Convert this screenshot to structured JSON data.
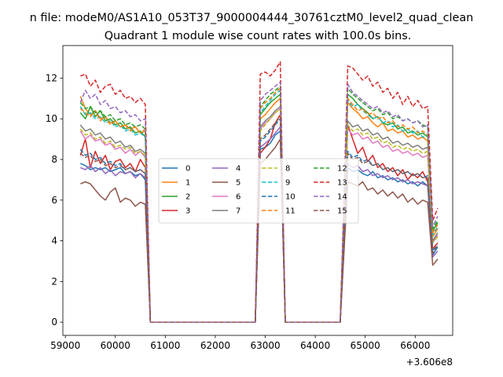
{
  "suptitle": "n file: modeM0/AS1A10_053T37_9000004444_30761cztM0_level2_quad_clean",
  "title": "Quadrant 1 module wise count rates with 100.0s bins.",
  "chart_data": {
    "type": "line",
    "title": "Quadrant 1 module wise count rates with 100.0s bins.",
    "xlabel": "",
    "ylabel": "",
    "x_offset_label": "+3.606e8",
    "xlim": [
      58950,
      66750
    ],
    "ylim": [
      -0.65,
      13.6
    ],
    "xticks": [
      59000,
      60000,
      61000,
      62000,
      63000,
      64000,
      65000,
      66000
    ],
    "yticks": [
      0,
      2,
      4,
      6,
      8,
      10,
      12
    ],
    "legend_location": "center",
    "legend_columns": 4,
    "grid": false,
    "segments": [
      {
        "x_start": 59300,
        "x_end": 60600
      },
      {
        "x_start": 62900,
        "x_end": 63300
      },
      {
        "x_start": 64650,
        "x_end": 66250
      }
    ],
    "series": [
      {
        "name": "0",
        "color": "#1f77b4",
        "style": "solid",
        "seg_values": [
          [
            7.8,
            7.7,
            7.5,
            7.6,
            7.5,
            7.6,
            7.4,
            7.5,
            7.6,
            7.3,
            7.4,
            7.2,
            7.3,
            7.0
          ],
          [
            8.5,
            8.6,
            8.8,
            9.2,
            9.4
          ],
          [
            7.6,
            7.4,
            7.5,
            7.3,
            7.2,
            7.4,
            7.1,
            7.2,
            7.0,
            7.1,
            6.9,
            7.0,
            6.8,
            6.9,
            6.7,
            6.9,
            6.7
          ]
        ],
        "tail": [
          3.3,
          3.7
        ]
      },
      {
        "name": "1",
        "color": "#ff7f0e",
        "style": "solid",
        "seg_values": [
          [
            11.1,
            10.5,
            10.2,
            10.4,
            10.0,
            10.1,
            9.8,
            9.9,
            9.6,
            9.7,
            9.5,
            9.6,
            9.3,
            9.4
          ],
          [
            10.0,
            10.2,
            10.5,
            10.8,
            11.0
          ],
          [
            10.8,
            10.5,
            10.3,
            10.0,
            10.1,
            9.8,
            9.6,
            9.8,
            9.4,
            9.5,
            9.3,
            9.4,
            9.1,
            9.2,
            9.0,
            9.1,
            8.9
          ]
        ],
        "tail": [
          4.2,
          4.6
        ]
      },
      {
        "name": "2",
        "color": "#2ca02c",
        "style": "solid",
        "seg_values": [
          [
            10.3,
            10.0,
            10.6,
            10.1,
            10.4,
            9.9,
            10.0,
            9.7,
            9.8,
            9.5,
            9.6,
            9.3,
            9.4,
            9.1
          ],
          [
            10.2,
            10.5,
            10.8,
            11.0,
            11.2
          ],
          [
            11.2,
            11.0,
            10.7,
            10.5,
            10.3,
            10.0,
            10.1,
            9.8,
            9.7,
            9.8,
            9.5,
            9.6,
            9.3,
            9.4,
            9.2,
            9.3,
            9.1
          ]
        ],
        "tail": [
          4.5,
          4.9
        ]
      },
      {
        "name": "3",
        "color": "#d62728",
        "style": "solid",
        "seg_values": [
          [
            8.2,
            9.0,
            7.6,
            8.4,
            7.8,
            8.2,
            7.5,
            7.9,
            8.0,
            7.6,
            7.8,
            7.4,
            8.0,
            7.6
          ],
          [
            8.3,
            8.6,
            9.0,
            9.8,
            10.2
          ],
          [
            9.7,
            9.0,
            8.3,
            8.6,
            7.9,
            8.2,
            7.6,
            7.8,
            7.4,
            7.6,
            7.2,
            7.5,
            7.0,
            7.3,
            7.1,
            7.4,
            6.9
          ]
        ],
        "tail": [
          3.6,
          3.9
        ]
      },
      {
        "name": "4",
        "color": "#9467bd",
        "style": "solid",
        "seg_values": [
          [
            7.6,
            7.5,
            7.7,
            7.4,
            7.6,
            7.3,
            7.5,
            7.2,
            7.4,
            7.3,
            7.4,
            7.1,
            7.3,
            7.1
          ],
          [
            8.6,
            8.8,
            9.0,
            9.3,
            9.6
          ],
          [
            7.8,
            7.6,
            7.7,
            7.4,
            7.5,
            7.2,
            7.3,
            7.1,
            7.2,
            7.0,
            7.1,
            6.9,
            7.0,
            6.8,
            6.9,
            6.8,
            6.7
          ]
        ],
        "tail": [
          3.2,
          3.5
        ]
      },
      {
        "name": "5",
        "color": "#8c564b",
        "style": "solid",
        "seg_values": [
          [
            6.8,
            6.9,
            6.8,
            6.5,
            6.2,
            6.0,
            6.4,
            6.6,
            5.9,
            6.1,
            6.0,
            5.7,
            5.9,
            5.8
          ],
          [
            7.8,
            8.0,
            8.3,
            8.6,
            9.0
          ],
          [
            6.9,
            6.8,
            6.7,
            6.9,
            6.5,
            6.6,
            6.3,
            6.5,
            6.2,
            6.4,
            6.1,
            6.3,
            5.9,
            6.1,
            5.8,
            6.0,
            5.9
          ]
        ],
        "tail": [
          2.8,
          3.1
        ]
      },
      {
        "name": "6",
        "color": "#e377c2",
        "style": "solid",
        "seg_values": [
          [
            9.4,
            9.0,
            9.2,
            8.9,
            9.0,
            8.7,
            8.8,
            8.5,
            8.6,
            8.3,
            8.5,
            8.2,
            8.4,
            8.1
          ],
          [
            9.5,
            9.8,
            10.0,
            10.3,
            10.5
          ],
          [
            9.5,
            9.2,
            9.3,
            9.0,
            9.1,
            8.8,
            8.9,
            8.6,
            8.7,
            8.4,
            8.5,
            8.3,
            8.4,
            8.2,
            8.3,
            8.1,
            8.2
          ]
        ],
        "tail": [
          3.9,
          4.3
        ]
      },
      {
        "name": "7",
        "color": "#7f7f7f",
        "style": "solid",
        "seg_values": [
          [
            9.7,
            9.4,
            9.5,
            9.2,
            9.3,
            9.0,
            9.1,
            8.8,
            8.9,
            8.6,
            8.7,
            8.4,
            8.5,
            8.3
          ],
          [
            9.6,
            9.9,
            10.1,
            10.4,
            10.6
          ],
          [
            9.9,
            9.6,
            9.7,
            9.4,
            9.5,
            9.2,
            9.3,
            9.0,
            9.1,
            8.8,
            8.9,
            8.7,
            8.8,
            8.6,
            8.7,
            8.5,
            8.6
          ]
        ],
        "tail": [
          4.0,
          4.4
        ]
      },
      {
        "name": "8",
        "color": "#bcbd22",
        "style": "dashed",
        "seg_values": [
          [
            9.5,
            9.2,
            9.3,
            9.0,
            9.1,
            8.8,
            8.9,
            8.6,
            8.7,
            8.5,
            8.6,
            8.3,
            8.4,
            8.2
          ],
          [
            9.4,
            9.7,
            10.0,
            10.3,
            10.5
          ],
          [
            9.7,
            9.4,
            9.5,
            9.2,
            9.3,
            9.0,
            9.1,
            8.8,
            8.9,
            8.6,
            8.7,
            8.5,
            8.6,
            8.4,
            8.5,
            8.3,
            8.4
          ]
        ],
        "tail": [
          3.9,
          4.2
        ]
      },
      {
        "name": "9",
        "color": "#17becf",
        "style": "dashed",
        "seg_values": [
          [
            10.6,
            10.2,
            10.3,
            10.0,
            10.1,
            9.8,
            9.9,
            9.6,
            9.7,
            9.4,
            9.5,
            9.2,
            9.3,
            9.1
          ],
          [
            10.3,
            10.6,
            10.9,
            11.2,
            11.4
          ],
          [
            10.9,
            10.6,
            10.7,
            10.4,
            10.2,
            10.0,
            10.1,
            9.8,
            9.9,
            9.6,
            9.7,
            9.4,
            9.5,
            9.3,
            9.4,
            9.1,
            9.2
          ]
        ],
        "tail": [
          4.3,
          4.7
        ]
      },
      {
        "name": "10",
        "color": "#1f77b4",
        "style": "dashed",
        "seg_values": [
          [
            8.5,
            8.2,
            8.3,
            8.0,
            8.1,
            7.8,
            7.9,
            7.7,
            7.8,
            7.5,
            7.6,
            7.4,
            7.5,
            7.3
          ],
          [
            8.9,
            9.1,
            9.4,
            9.7,
            10.0
          ],
          [
            8.4,
            8.1,
            8.2,
            7.9,
            8.0,
            7.7,
            7.8,
            7.5,
            7.6,
            7.4,
            7.5,
            7.3,
            7.4,
            7.2,
            7.3,
            7.1,
            7.2
          ]
        ],
        "tail": [
          3.5,
          3.8
        ]
      },
      {
        "name": "11",
        "color": "#ff7f0e",
        "style": "dashed",
        "seg_values": [
          [
            10.5,
            10.3,
            10.1,
            10.4,
            9.9,
            10.1,
            9.7,
            9.9,
            9.6,
            9.7,
            9.4,
            9.6,
            9.3,
            9.5
          ],
          [
            10.5,
            10.8,
            11.0,
            11.3,
            11.5
          ],
          [
            11.0,
            10.7,
            10.4,
            10.5,
            10.2,
            10.3,
            10.0,
            10.1,
            9.8,
            9.9,
            9.6,
            9.7,
            9.5,
            9.6,
            9.3,
            9.4,
            9.2
          ]
        ],
        "tail": [
          4.4,
          4.8
        ]
      },
      {
        "name": "12",
        "color": "#2ca02c",
        "style": "dashed",
        "seg_values": [
          [
            10.8,
            10.5,
            10.6,
            10.3,
            10.4,
            10.1,
            10.2,
            9.9,
            10.0,
            9.7,
            9.8,
            9.6,
            9.7,
            9.5
          ],
          [
            10.6,
            10.9,
            11.2,
            11.4,
            11.6
          ],
          [
            11.5,
            11.2,
            11.0,
            10.8,
            10.6,
            10.4,
            10.5,
            10.2,
            10.3,
            10.0,
            10.1,
            9.9,
            10.0,
            9.8,
            9.9,
            9.7,
            9.6
          ]
        ],
        "tail": [
          4.6,
          5.0
        ]
      },
      {
        "name": "13",
        "color": "#d62728",
        "style": "dashed",
        "seg_values": [
          [
            12.1,
            12.2,
            11.6,
            11.9,
            11.3,
            11.6,
            11.7,
            11.2,
            11.4,
            11.0,
            11.1,
            10.8,
            11.0,
            10.7
          ],
          [
            12.2,
            12.3,
            12.1,
            12.4,
            12.8
          ],
          [
            12.6,
            12.5,
            12.2,
            11.9,
            12.1,
            11.6,
            11.8,
            11.3,
            11.5,
            11.0,
            11.3,
            10.7,
            11.1,
            10.6,
            10.9,
            10.5,
            10.6
          ]
        ],
        "tail": [
          5.0,
          5.6
        ]
      },
      {
        "name": "14",
        "color": "#9467bd",
        "style": "dashed",
        "seg_values": [
          [
            10.8,
            11.4,
            11.0,
            11.2,
            10.7,
            10.9,
            10.5,
            10.6,
            10.3,
            10.4,
            10.1,
            10.2,
            9.9,
            10.0
          ],
          [
            10.9,
            11.2,
            11.4,
            11.6,
            11.8
          ],
          [
            11.7,
            11.3,
            11.1,
            10.9,
            10.7,
            10.5,
            10.6,
            10.3,
            10.4,
            10.1,
            10.2,
            9.9,
            10.0,
            9.8,
            9.9,
            9.6,
            9.7
          ]
        ],
        "tail": [
          4.7,
          5.2
        ]
      },
      {
        "name": "15",
        "color": "#8c564b",
        "style": "dashed",
        "seg_values": [
          [
            8.3,
            8.1,
            8.2,
            7.9,
            8.0,
            7.7,
            7.8,
            7.6,
            7.7,
            7.5,
            7.6,
            7.4,
            7.5,
            7.3
          ],
          [
            9.0,
            9.2,
            9.5,
            9.8,
            10.1
          ],
          [
            8.3,
            8.0,
            8.1,
            7.8,
            7.9,
            7.7,
            7.8,
            7.5,
            7.6,
            7.4,
            7.5,
            7.3,
            7.4,
            7.2,
            7.3,
            7.1,
            7.1
          ]
        ],
        "tail": [
          3.4,
          3.8
        ]
      }
    ]
  }
}
